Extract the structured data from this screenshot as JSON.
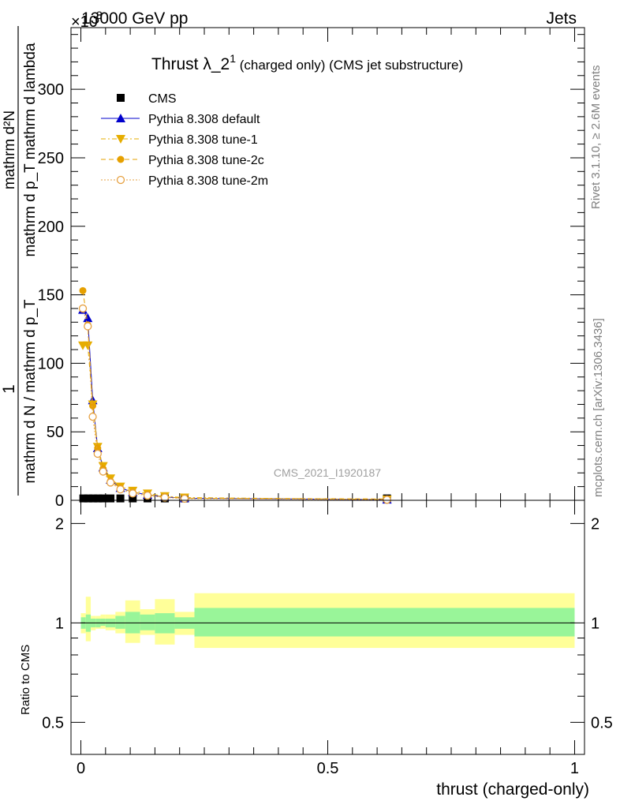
{
  "header": {
    "energy": "13000 GeV pp",
    "process": "Jets",
    "scale_prefix": "×10",
    "scale_exp": "3"
  },
  "side_labels": {
    "rivet": "Rivet 3.1.10, ≥ 2.6M events",
    "mcplots": "mcplots.cern.ch [arXiv:1306.3436]"
  },
  "watermark": "CMS_2021_I1920187",
  "chart_data": [
    {
      "type": "scatter",
      "title_main": "Thrust λ_2",
      "title_sup": "1",
      "title_sub": " (charged only) (CMS jet substructure)",
      "ylabel": {
        "num": "1",
        "den": "mathrm d N / mathrm d p_T",
        "top": "mathrm d²N",
        "bottom": "mathrm d p_T mathrm d lambda"
      },
      "xlim": [
        -0.02,
        1.02
      ],
      "ylim": [
        0,
        345
      ],
      "y_unit_scale": "×10^3",
      "yticks": [
        0,
        50,
        100,
        150,
        200,
        250,
        300
      ],
      "legend_position": "top-left",
      "legend": [
        {
          "name": "CMS",
          "marker": "square",
          "color": "#000000",
          "line": "none"
        },
        {
          "name": "Pythia 8.308 default",
          "marker": "triangle-up",
          "color": "#0000cc",
          "line": "solid"
        },
        {
          "name": "Pythia 8.308 tune-1",
          "marker": "triangle-down",
          "color": "#e6ad00",
          "line": "dashdot"
        },
        {
          "name": "Pythia 8.308 tune-2c",
          "marker": "circle",
          "color": "#e6a000",
          "line": "dashed"
        },
        {
          "name": "Pythia 8.308 tune-2m",
          "marker": "circle-open",
          "color": "#e6a040",
          "line": "dotted"
        }
      ],
      "bin_edges": [
        0,
        0.01,
        0.02,
        0.03,
        0.04,
        0.05,
        0.07,
        0.09,
        0.12,
        0.15,
        0.19,
        0.23,
        1.0
      ],
      "cms": [
        0.8,
        0.8,
        0.8,
        0.8,
        0.8,
        0.8,
        0.8,
        0.8,
        0.8,
        0.8,
        0.8,
        0.8
      ],
      "series": [
        {
          "name": "Pythia 8.308 default",
          "x": [
            0.004,
            0.014,
            0.024,
            0.034,
            0.045,
            0.06,
            0.08,
            0.105,
            0.135,
            0.17,
            0.21,
            0.62
          ],
          "values": [
            139,
            133,
            73,
            38,
            24,
            15,
            9,
            6,
            4,
            2.5,
            1.5,
            0.5
          ]
        },
        {
          "name": "Pythia 8.308 tune-1",
          "x": [
            0.004,
            0.014,
            0.024,
            0.034,
            0.045,
            0.06,
            0.08,
            0.105,
            0.135,
            0.17,
            0.21,
            0.62
          ],
          "values": [
            113,
            113,
            70,
            39,
            25,
            16,
            10,
            7,
            5,
            3,
            2,
            0.6
          ]
        },
        {
          "name": "Pythia 8.308 tune-2c",
          "x": [
            0.004,
            0.014,
            0.024,
            0.034,
            0.045,
            0.06,
            0.08,
            0.105,
            0.135,
            0.17,
            0.21,
            0.62
          ],
          "values": [
            153,
            128,
            69,
            38,
            23,
            14,
            9,
            6,
            4,
            2.5,
            1.5,
            1
          ]
        },
        {
          "name": "Pythia 8.308 tune-2m",
          "x": [
            0.004,
            0.014,
            0.024,
            0.034,
            0.045,
            0.06,
            0.08,
            0.105,
            0.135,
            0.17,
            0.21,
            0.62
          ],
          "values": [
            140,
            127,
            61,
            34,
            21,
            13,
            8,
            5,
            3.5,
            2,
            1.2,
            0.4
          ]
        }
      ]
    },
    {
      "type": "area",
      "ylabel": "Ratio to CMS",
      "xlabel": "thrust (charged-only)",
      "xlim": [
        -0.02,
        1.02
      ],
      "ylim": [
        0.4,
        2.35
      ],
      "log_y": true,
      "yticks": [
        0.5,
        1,
        2
      ],
      "xticks": [
        0,
        0.5,
        1
      ],
      "bands": {
        "edges": [
          0,
          0.01,
          0.02,
          0.03,
          0.04,
          0.05,
          0.07,
          0.09,
          0.12,
          0.15,
          0.19,
          0.23,
          1.0
        ],
        "stat_lo": [
          0.96,
          0.94,
          0.97,
          0.97,
          0.98,
          0.97,
          0.96,
          0.93,
          0.95,
          0.93,
          0.96,
          0.91
        ],
        "stat_hi": [
          1.04,
          1.06,
          1.03,
          1.03,
          1.03,
          1.03,
          1.05,
          1.08,
          1.06,
          1.07,
          1.04,
          1.11
        ],
        "tot_lo": [
          0.93,
          0.88,
          0.95,
          0.96,
          0.96,
          0.95,
          0.93,
          0.87,
          0.92,
          0.86,
          0.92,
          0.84
        ],
        "tot_hi": [
          1.07,
          1.2,
          1.05,
          1.05,
          1.06,
          1.06,
          1.08,
          1.17,
          1.1,
          1.18,
          1.08,
          1.23
        ]
      }
    }
  ]
}
